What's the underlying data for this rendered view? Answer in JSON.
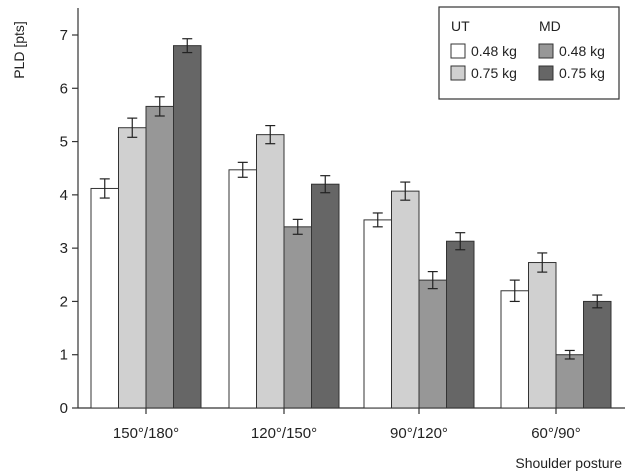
{
  "chart_data": {
    "type": "bar",
    "title": "",
    "ylabel": "PLD [pts]",
    "xlabel": "Shoulder posture",
    "ylim": [
      0,
      7.5
    ],
    "yticks": [
      0,
      1,
      2,
      3,
      4,
      5,
      6,
      7
    ],
    "categories": [
      "150°/180°",
      "120°/150°",
      "90°/120°",
      "60°/90°"
    ],
    "legend": {
      "position": "top-right",
      "groups": [
        {
          "name": "UT",
          "entries": [
            "0.48 kg",
            "0.75 kg"
          ]
        },
        {
          "name": "MD",
          "entries": [
            "0.48 kg",
            "0.75 kg"
          ]
        }
      ]
    },
    "series": [
      {
        "group": "UT",
        "name": "0.48 kg",
        "color": "#ffffff",
        "values": [
          4.12,
          4.47,
          3.53,
          2.2
        ],
        "errors": [
          0.18,
          0.14,
          0.13,
          0.2
        ]
      },
      {
        "group": "UT",
        "name": "0.75 kg",
        "color": "#d0d0d0",
        "values": [
          5.26,
          5.13,
          4.07,
          2.73
        ],
        "errors": [
          0.18,
          0.17,
          0.17,
          0.18
        ]
      },
      {
        "group": "MD",
        "name": "0.48 kg",
        "color": "#979797",
        "values": [
          5.66,
          3.4,
          2.4,
          1.0
        ],
        "errors": [
          0.18,
          0.14,
          0.16,
          0.08
        ]
      },
      {
        "group": "MD",
        "name": "0.75 kg",
        "color": "#666666",
        "values": [
          6.8,
          4.2,
          3.13,
          2.0
        ],
        "errors": [
          0.13,
          0.16,
          0.16,
          0.12
        ]
      }
    ],
    "grid": false
  }
}
